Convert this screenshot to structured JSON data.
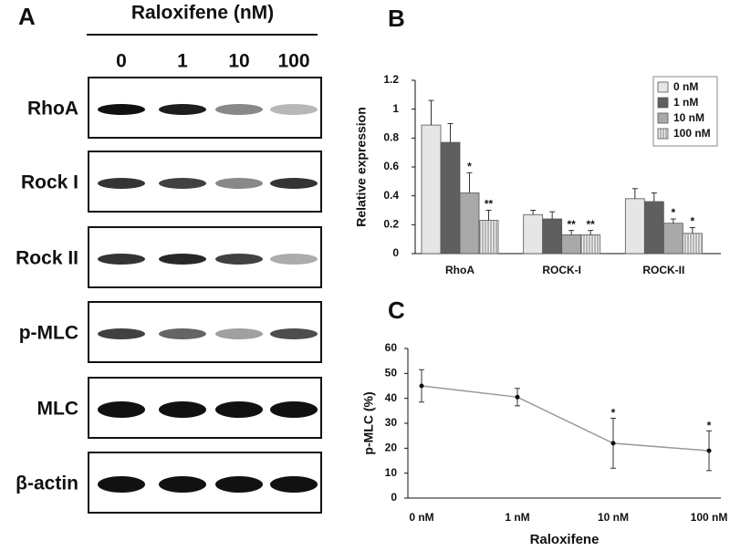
{
  "blot": {
    "label": "A",
    "title": "Raloxifene (nM)",
    "lanes": [
      "0",
      "1",
      "10",
      "100"
    ],
    "rows": [
      "RhoA",
      "Rock I",
      "Rock II",
      "p-MLC",
      "MLC",
      "β-actin"
    ]
  },
  "chart_data": [
    {
      "type": "bar",
      "panel": "B",
      "y_label": "Relative expression",
      "categories": [
        "RhoA",
        "ROCK-I",
        "ROCK-II"
      ],
      "series": [
        {
          "name": "0 nM",
          "color": "#e6e6e6",
          "values": [
            0.89,
            0.27,
            0.38
          ],
          "errors": [
            0.17,
            0.03,
            0.07
          ],
          "annotations": [
            null,
            null,
            null
          ]
        },
        {
          "name": "1 nM",
          "color": "#5f5f5f",
          "values": [
            0.77,
            0.24,
            0.36
          ],
          "errors": [
            0.13,
            0.05,
            0.06
          ],
          "annotations": [
            null,
            null,
            null
          ]
        },
        {
          "name": "10 nM",
          "color": "#a9a9a9",
          "values": [
            0.42,
            0.13,
            0.21
          ],
          "errors": [
            0.14,
            0.03,
            0.03
          ],
          "annotations": [
            "*",
            "**",
            "*"
          ]
        },
        {
          "name": "100 nM",
          "color": "#f2f2f2",
          "hatch": true,
          "values": [
            0.23,
            0.13,
            0.14
          ],
          "errors": [
            0.07,
            0.03,
            0.04
          ],
          "annotations": [
            "**",
            "**",
            "*"
          ]
        }
      ],
      "ylim": [
        0,
        1.2
      ],
      "yticks": [
        0,
        0.2,
        0.4,
        0.6,
        0.8,
        1,
        1.2
      ],
      "legend": "top-right"
    },
    {
      "type": "line",
      "panel": "C",
      "x_label": "Raloxifene",
      "y_label": "p-MLC (%)",
      "categories": [
        "0 nM",
        "1 nM",
        "10 nM",
        "100 nM"
      ],
      "values": [
        45,
        40.5,
        22,
        19
      ],
      "errors": [
        6.5,
        3.5,
        10,
        8
      ],
      "annotations": [
        null,
        null,
        "*",
        "*"
      ],
      "color": "#999999",
      "ylim": [
        0,
        60
      ],
      "yticks": [
        0,
        10,
        20,
        30,
        40,
        50,
        60
      ]
    }
  ]
}
